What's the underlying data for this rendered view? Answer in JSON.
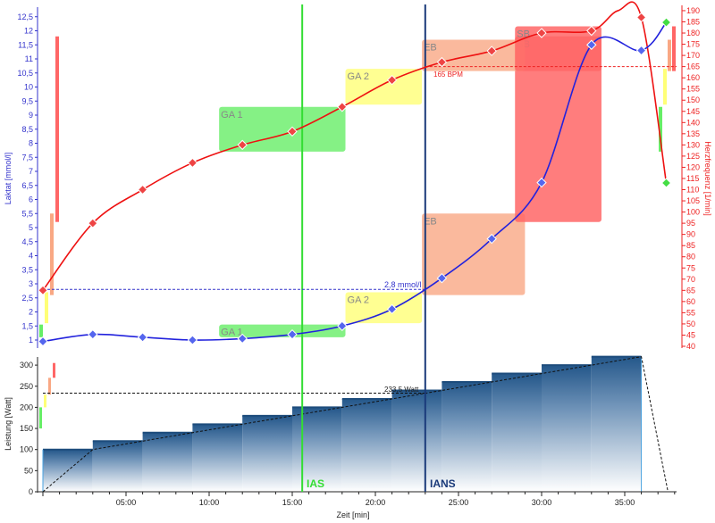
{
  "chart_data": {
    "type": "line",
    "title": "",
    "colors": {
      "lactate": "#2222dd",
      "heart_rate": "#ee1111",
      "power": "#2c5f8f",
      "ias": "#33dd33",
      "ians": "#1a3a7a",
      "lactate_axis": "#3333cc",
      "hr_axis": "#ee2222",
      "recovery": "#44dd44"
    },
    "xlabel": "Zeit [min]",
    "x_ticks": [
      {
        "v": 5,
        "label": "05:00"
      },
      {
        "v": 10,
        "label": "10:00"
      },
      {
        "v": 15,
        "label": "15:00"
      },
      {
        "v": 20,
        "label": "20:00"
      },
      {
        "v": 25,
        "label": "25:00"
      },
      {
        "v": 30,
        "label": "30:00"
      },
      {
        "v": 35,
        "label": "35:00"
      }
    ],
    "xlim": [
      0,
      38
    ],
    "lactate_axis": {
      "label": "Laktat [mmol/l]",
      "ylim": [
        0.8,
        12.7
      ],
      "ticks": [
        "1",
        "1,5",
        "2",
        "2,5",
        "3",
        "3,5",
        "4",
        "4,5",
        "5",
        "5,5",
        "6",
        "6,5",
        "7",
        "7,5",
        "8",
        "8,5",
        "9",
        "9,5",
        "10",
        "10,5",
        "11",
        "11,5",
        "12",
        "12,5"
      ]
    },
    "hr_axis": {
      "label": "Herzfrequenz [1/min]",
      "ylim": [
        40,
        192
      ],
      "ticks": [
        "40",
        "45",
        "50",
        "55",
        "60",
        "65",
        "70",
        "75",
        "80",
        "85",
        "90",
        "95",
        "100",
        "105",
        "110",
        "115",
        "120",
        "125",
        "130",
        "135",
        "140",
        "145",
        "150",
        "155",
        "160",
        "165",
        "170",
        "175",
        "180",
        "185",
        "190"
      ]
    },
    "power_axis": {
      "label": "Leistung [Watt]",
      "ylim": [
        0,
        320
      ],
      "ticks": [
        "0",
        "50",
        "100",
        "150",
        "200",
        "250",
        "300"
      ]
    },
    "series": [
      {
        "name": "Laktat",
        "x": [
          0,
          3,
          6,
          9,
          12,
          15,
          18,
          21,
          24,
          27,
          30,
          33,
          36
        ],
        "y": [
          0.95,
          1.2,
          1.1,
          1.0,
          1.05,
          1.2,
          1.5,
          2.1,
          3.2,
          4.6,
          6.6,
          11.5,
          11.3
        ]
      },
      {
        "name": "Herzfrequenz",
        "x": [
          0,
          3,
          6,
          9,
          12,
          15,
          18,
          21,
          24,
          27,
          30,
          33,
          36
        ],
        "y": [
          65,
          95,
          110,
          122,
          130,
          136,
          147,
          159,
          167,
          172,
          180,
          181,
          187
        ]
      }
    ],
    "recovery": {
      "time": 37.5,
      "lactate": 12.3,
      "heart_rate": 113
    },
    "power_steps": [
      {
        "from": 0,
        "to": 3,
        "watt": 100
      },
      {
        "from": 3,
        "to": 6,
        "watt": 120
      },
      {
        "from": 6,
        "to": 9,
        "watt": 140
      },
      {
        "from": 9,
        "to": 12,
        "watt": 160
      },
      {
        "from": 12,
        "to": 15,
        "watt": 180
      },
      {
        "from": 15,
        "to": 18,
        "watt": 200
      },
      {
        "from": 18,
        "to": 21,
        "watt": 220
      },
      {
        "from": 21,
        "to": 24,
        "watt": 240
      },
      {
        "from": 24,
        "to": 27,
        "watt": 260
      },
      {
        "from": 27,
        "to": 30,
        "watt": 280
      },
      {
        "from": 30,
        "to": 33,
        "watt": 300
      },
      {
        "from": 33,
        "to": 36,
        "watt": 320
      }
    ],
    "power_ramp": {
      "x": [
        0,
        3,
        36,
        37.6
      ],
      "y": [
        0,
        100,
        320,
        0
      ]
    },
    "zones_lactate": [
      {
        "name": "GA 1",
        "from": 10.6,
        "to": 18.2,
        "low": 1.1,
        "high": 1.55,
        "color": "#66ee66"
      },
      {
        "name": "GA 2",
        "from": 18.2,
        "to": 22.8,
        "low": 1.6,
        "high": 2.7,
        "color": "#ffff77"
      },
      {
        "name": "EB",
        "from": 22.8,
        "to": 29.0,
        "low": 2.6,
        "high": 5.5,
        "color": "#f9a884"
      },
      {
        "name": "SB",
        "from": 28.4,
        "to": 33.6,
        "low": 5.2,
        "high": 11.8,
        "color": "#ff6666"
      }
    ],
    "zones_hr": [
      {
        "name": "GA 1",
        "from": 10.6,
        "to": 18.2,
        "low": 127,
        "high": 147,
        "color": "#66ee66"
      },
      {
        "name": "GA 2",
        "from": 18.2,
        "to": 22.8,
        "low": 148,
        "high": 164,
        "color": "#ffff77"
      },
      {
        "name": "EB",
        "from": 22.8,
        "to": 29.0,
        "low": 163,
        "high": 177,
        "color": "#f9a884"
      },
      {
        "name": "SB",
        "from": 28.4,
        "to": 33.6,
        "low": 163,
        "high": 183,
        "color": "#ff6666"
      }
    ],
    "thresholds": {
      "ias": {
        "label": "IAS",
        "time": 15.6
      },
      "ians": {
        "label": "IANS",
        "time": 23.0,
        "lactate": 2.8,
        "lactate_label": "2,8 mmol/l",
        "hr": 165,
        "hr_label": "165 BPM",
        "power": 233.5,
        "power_label": "233,5 Watt"
      }
    },
    "power_zones": [
      {
        "low": 150,
        "high": 200,
        "color": "#66ee66"
      },
      {
        "low": 200,
        "high": 230,
        "color": "#ffff77"
      },
      {
        "low": 230,
        "high": 270,
        "color": "#f9a884"
      },
      {
        "low": 270,
        "high": 305,
        "color": "#ff6666"
      }
    ]
  }
}
